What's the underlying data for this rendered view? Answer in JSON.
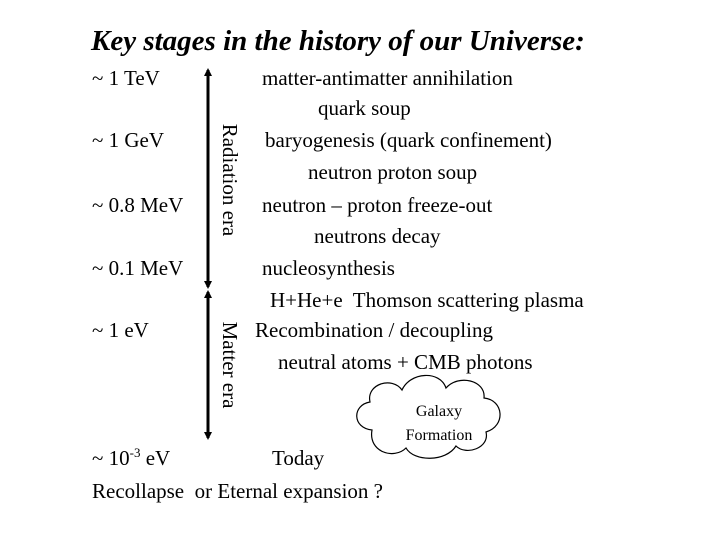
{
  "title": "Key stages in the history of our Universe:",
  "energies": [
    {
      "label": "~ 1 TeV"
    },
    {
      "label": "~ 1 GeV"
    },
    {
      "label": "~ 0.8 MeV"
    },
    {
      "label": "~ 0.1 MeV"
    },
    {
      "label": "~ 1 eV"
    },
    {
      "base": "~ 10",
      "exponent": "-3",
      "unit": "eV"
    }
  ],
  "eras": [
    "Radiation era",
    "Matter era"
  ],
  "events": [
    "matter-antimatter annihilation",
    "quark soup",
    "baryogenesis (quark confinement)",
    "neutron proton soup",
    "neutron – proton freeze-out",
    "neutrons decay",
    "nucleosynthesis",
    "H+He+e  Thomson scattering plasma",
    "Recombination / decoupling",
    "neutral atoms + CMB photons"
  ],
  "cloud": [
    "Galaxy",
    "Formation"
  ],
  "today": "Today",
  "future": "Recollapse  or Eternal expansion ?"
}
